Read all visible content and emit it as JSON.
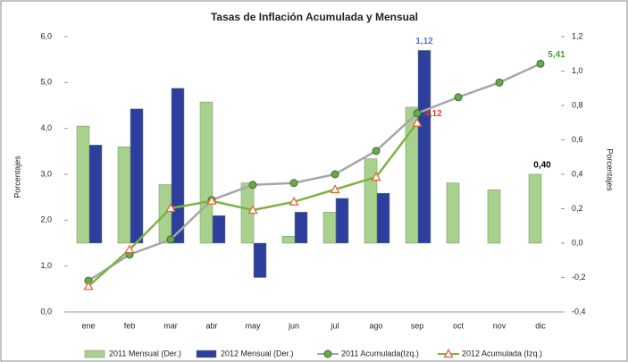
{
  "chart_data": {
    "type": "bar-line",
    "title": "Tasas de Inflación Acumulada y Mensual",
    "ylabel": "Porcentajes",
    "y2label": "Porcentajes",
    "categories": [
      "ene",
      "feb",
      "mar",
      "abr",
      "may",
      "jun",
      "jul",
      "ago",
      "sep",
      "oct",
      "nov",
      "dic"
    ],
    "ylim": [
      0,
      6
    ],
    "yticks": [
      {
        "value": 0,
        "label": "0,0"
      },
      {
        "value": 1,
        "label": "1,0"
      },
      {
        "value": 2,
        "label": "2,0"
      },
      {
        "value": 3,
        "label": "3,0"
      },
      {
        "value": 4,
        "label": "4,0"
      },
      {
        "value": 5,
        "label": "5,0"
      },
      {
        "value": 6,
        "label": "6,0"
      }
    ],
    "y2lim": [
      -0.4,
      1.2
    ],
    "y2ticks": [
      {
        "value": -0.4,
        "label": "-0,4"
      },
      {
        "value": -0.2,
        "label": "-0,2"
      },
      {
        "value": 0,
        "label": "0,0"
      },
      {
        "value": 0.2,
        "label": "0,2"
      },
      {
        "value": 0.4,
        "label": "0,4"
      },
      {
        "value": 0.6,
        "label": "0,6"
      },
      {
        "value": 0.8,
        "label": "0,8"
      },
      {
        "value": 1.0,
        "label": "1,0"
      },
      {
        "value": 1.2,
        "label": "1,2"
      }
    ],
    "grid": false,
    "legend": "bottom",
    "series": [
      {
        "name": "2011 Mensual (Der.)",
        "type": "bar",
        "axis": "y2",
        "color": "#a9d18e",
        "values": [
          0.68,
          0.56,
          0.34,
          0.82,
          0.35,
          0.04,
          0.18,
          0.49,
          0.79,
          0.35,
          0.31,
          0.4
        ],
        "value_labels": [
          null,
          null,
          null,
          null,
          null,
          null,
          null,
          null,
          null,
          null,
          null,
          "0,40"
        ],
        "label_color": "#000000"
      },
      {
        "name": "2012 Mensual (Der.)",
        "type": "bar",
        "axis": "y2",
        "color": "#2e3e9e",
        "values": [
          0.57,
          0.78,
          0.9,
          0.16,
          -0.2,
          0.18,
          0.26,
          0.29,
          1.12,
          null,
          null,
          null
        ],
        "value_labels": [
          null,
          null,
          null,
          null,
          null,
          null,
          null,
          null,
          "1,12",
          null,
          null,
          null
        ],
        "label_color": "#4a7bd0"
      },
      {
        "name": "2011 Acumulada(Izq.)",
        "type": "line",
        "color": "#a6a6a6",
        "marker": "circle",
        "marker_color": "#6aa84f",
        "values": [
          0.68,
          1.25,
          1.58,
          2.44,
          2.77,
          2.81,
          3.0,
          3.51,
          4.33,
          4.68,
          5.0,
          5.41
        ],
        "value_labels": [
          null,
          null,
          null,
          null,
          null,
          null,
          null,
          null,
          null,
          null,
          null,
          "5,41"
        ],
        "label_color": "#4f9a3a"
      },
      {
        "name": "2012 Acumulada (Izq.)",
        "type": "line",
        "color": "#7cb342",
        "marker": "triangle",
        "marker_color": "#e8643c",
        "values": [
          0.56,
          1.36,
          2.26,
          2.42,
          2.22,
          2.4,
          2.67,
          2.94,
          4.12,
          null,
          null,
          null
        ],
        "value_labels": [
          null,
          null,
          null,
          null,
          null,
          null,
          null,
          null,
          "4,12",
          null,
          null,
          null
        ],
        "label_color": "#d9452b"
      }
    ]
  }
}
